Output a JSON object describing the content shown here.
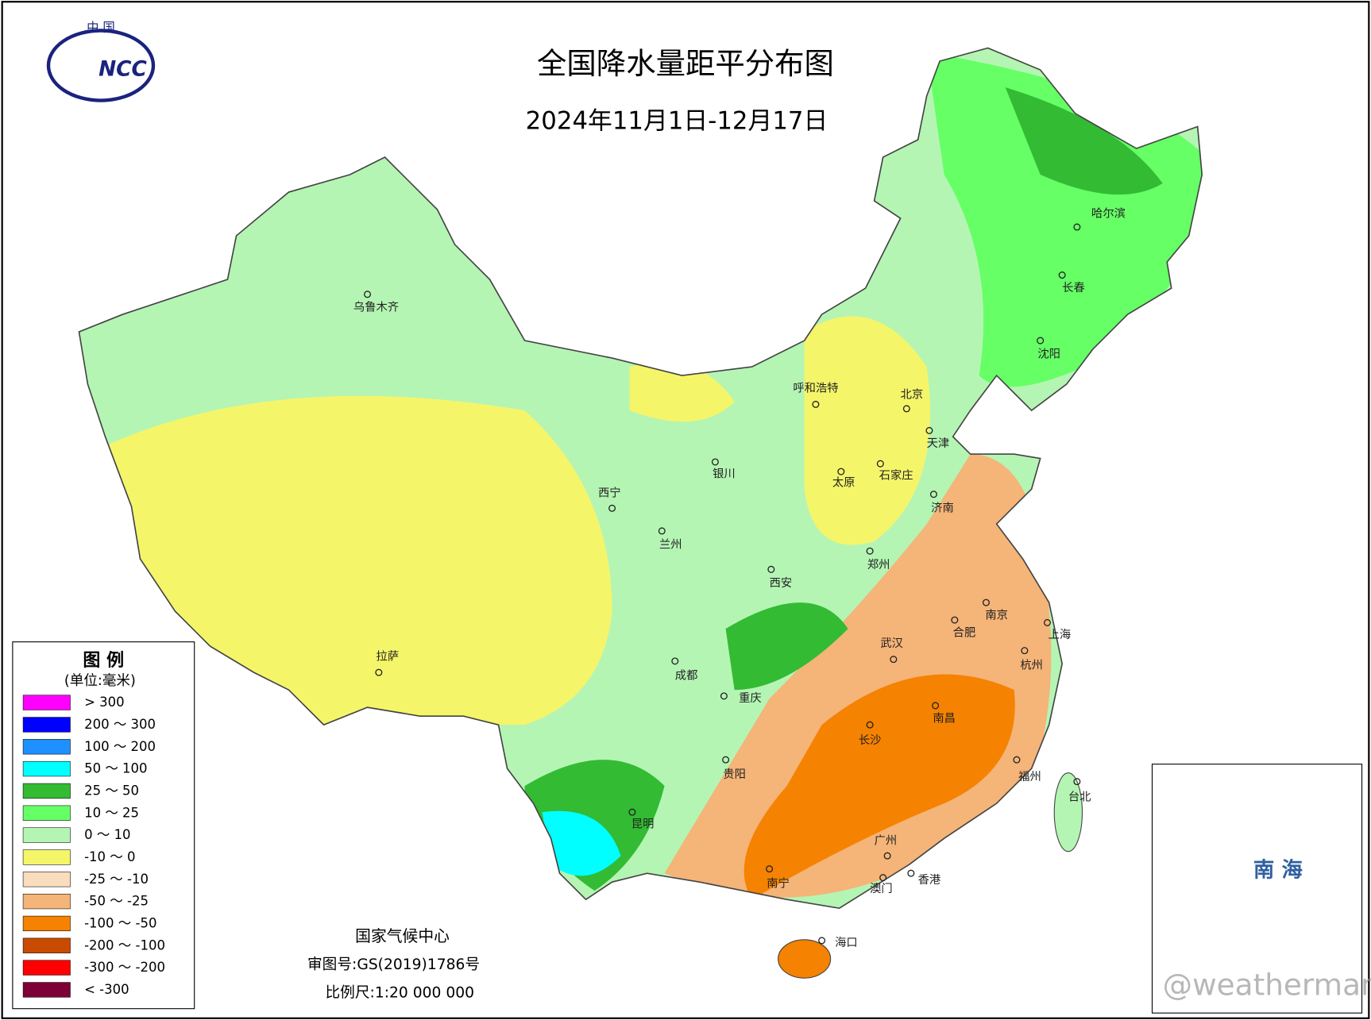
{
  "header": {
    "logo_top": "中 国",
    "logo_text": "NCC",
    "title": "全国降水量距平分布图",
    "subtitle": "2024年11月1日-12月17日"
  },
  "legend": {
    "title": "图 例",
    "unit": "(单位:毫米)",
    "items": [
      {
        "label": "> 300",
        "color": "#ff00ff"
      },
      {
        "label": "200 ～ 300",
        "color": "#0000ff"
      },
      {
        "label": "100 ～ 200",
        "color": "#1e90ff"
      },
      {
        "label": "50 ～ 100",
        "color": "#00ffff"
      },
      {
        "label": "25 ～ 50",
        "color": "#33bb33"
      },
      {
        "label": "10 ～ 25",
        "color": "#66ff66"
      },
      {
        "label": "0 ～ 10",
        "color": "#b4f5b4"
      },
      {
        "label": "-10 ～ 0",
        "color": "#f5f56a"
      },
      {
        "label": "-25 ～ -10",
        "color": "#fadcbe"
      },
      {
        "label": "-50 ～ -25",
        "color": "#f5b478"
      },
      {
        "label": "-100 ～ -50",
        "color": "#f58200"
      },
      {
        "label": "-200 ～ -100",
        "color": "#c84b00"
      },
      {
        "label": "-300 ～ -200",
        "color": "#ff0000"
      },
      {
        "label": "< -300",
        "color": "#7d0037"
      }
    ]
  },
  "cities": [
    "乌鲁木齐",
    "呼和浩特",
    "北京",
    "天津",
    "哈尔滨",
    "长春",
    "沈阳",
    "银川",
    "太原",
    "石家庄",
    "济南",
    "西宁",
    "兰州",
    "郑州",
    "西安",
    "南京",
    "合肥",
    "上海",
    "武汉",
    "杭州",
    "拉萨",
    "成都",
    "重庆",
    "南昌",
    "长沙",
    "贵阳",
    "福州",
    "台北",
    "昆明",
    "广州",
    "南宁",
    "香港",
    "澳门",
    "海口"
  ],
  "footer": {
    "org": "国家气候中心",
    "approval": "审图号:GS(2019)1786号",
    "scale": "比例尺:1:20 000 000"
  },
  "inset": {
    "label": "南 海"
  },
  "watermark": "@weatherman_信欣"
}
